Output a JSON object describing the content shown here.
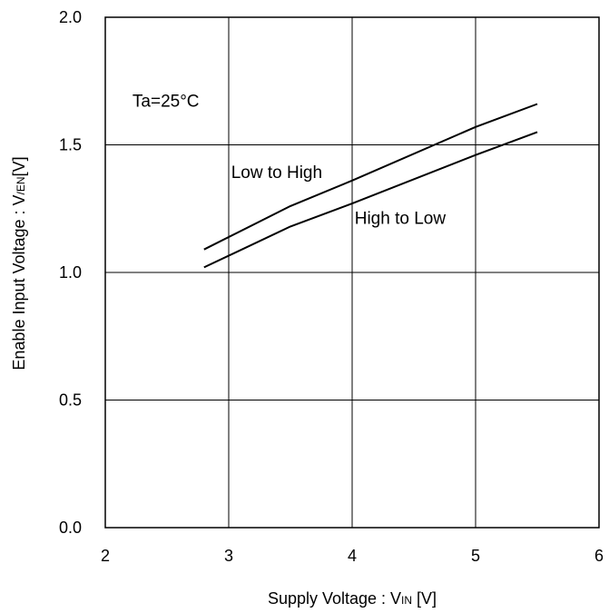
{
  "chart_data": {
    "type": "line",
    "title": "",
    "xlabel": {
      "main": "Supply Voltage : V",
      "sub": "IN",
      "suffix": " [V]"
    },
    "ylabel": {
      "main": "Enable Input Voltage : V",
      "sub": "/EN",
      "suffix": "[V]"
    },
    "xlim": [
      2,
      6
    ],
    "ylim": [
      0.0,
      2.0
    ],
    "x_ticks": [
      "2",
      "3",
      "4",
      "5",
      "6"
    ],
    "y_ticks": [
      "0.0",
      "0.5",
      "1.0",
      "1.5",
      "2.0"
    ],
    "grid": true,
    "series": [
      {
        "name": "Low to High",
        "x": [
          2.8,
          3.5,
          4.0,
          5.0,
          5.5
        ],
        "y": [
          1.09,
          1.26,
          1.36,
          1.57,
          1.66
        ]
      },
      {
        "name": "High to Low",
        "x": [
          2.8,
          3.5,
          4.0,
          5.0,
          5.5
        ],
        "y": [
          1.02,
          1.18,
          1.27,
          1.46,
          1.55
        ]
      }
    ],
    "annotations": [
      {
        "text": "Ta=25°C",
        "x": 2.22,
        "y": 1.65
      },
      {
        "text": "Low to High",
        "x": 3.02,
        "y": 1.37
      },
      {
        "text": "High to Low",
        "x": 4.02,
        "y": 1.19
      }
    ],
    "colors": {
      "line": "#000000",
      "grid": "#000000",
      "background": "#ffffff"
    }
  }
}
